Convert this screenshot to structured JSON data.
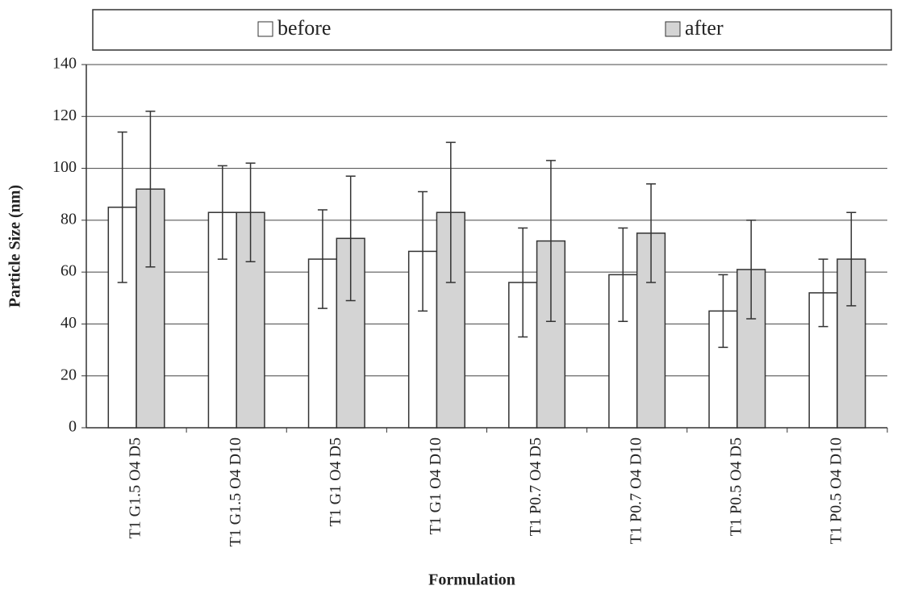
{
  "chart_data": {
    "type": "bar",
    "x_label": "Formulation",
    "y_label": "Particle Size (nm)",
    "categories": [
      "T1 G1.5 O4 D5",
      "T1 G1.5 O4 D10",
      "T1 G1 O4 D5",
      "T1 G1 O4 D10",
      "T1 P0.7 O4 D5",
      "T1 P0.7 O4 D10",
      "T1 P0.5 O4 D5",
      "T1 P0.5 O4 D10"
    ],
    "series": [
      {
        "name": "before",
        "color": "#ffffff",
        "values": [
          85,
          83,
          65,
          68,
          56,
          59,
          45,
          52
        ],
        "errors": [
          29,
          18,
          19,
          23,
          21,
          18,
          14,
          13
        ]
      },
      {
        "name": "after",
        "color": "#d4d4d4",
        "values": [
          92,
          83,
          73,
          83,
          72,
          75,
          61,
          65
        ],
        "errors": [
          30,
          19,
          24,
          27,
          31,
          19,
          19,
          18
        ]
      }
    ],
    "ylim": [
      0,
      140
    ],
    "yticks": [
      0,
      20,
      40,
      60,
      80,
      100,
      120,
      140
    ],
    "grid": true,
    "legend": "top"
  }
}
